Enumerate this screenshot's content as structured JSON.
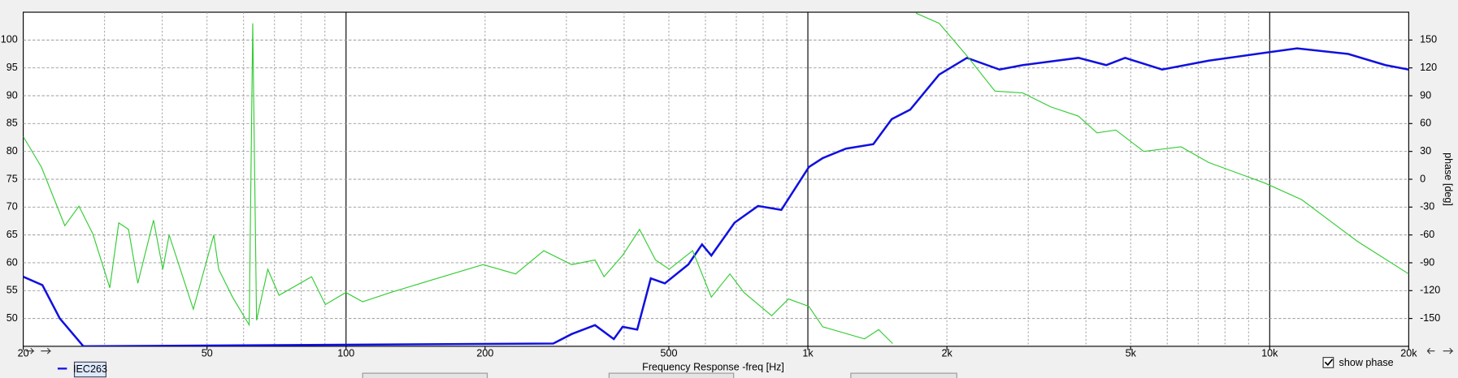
{
  "chart_data": {
    "type": "line",
    "x_label": "Frequency Response -freq [Hz]",
    "y2_label": "phase [deg]",
    "log_x": true,
    "grid": true,
    "xlim": [
      20,
      20000
    ],
    "xticks": [
      20,
      50,
      100,
      200,
      500,
      {
        "value": 1000,
        "label": "1k"
      },
      {
        "value": 2000,
        "label": "2k"
      },
      {
        "value": 5000,
        "label": "5k"
      },
      {
        "value": 10000,
        "label": "10k"
      },
      {
        "value": 20000,
        "label": "20k"
      }
    ],
    "ylim": [
      45,
      105
    ],
    "yticks": [
      50,
      55,
      60,
      65,
      70,
      75,
      80,
      85,
      90,
      95,
      100
    ],
    "y2lim": [
      -180,
      180
    ],
    "y2ticks": [
      -150,
      -120,
      -90,
      -60,
      -30,
      0,
      30,
      60,
      90,
      120,
      150
    ],
    "legend_label": "IEC263",
    "show_phase_label": "show phase",
    "show_phase": true,
    "series": [
      {
        "name": "IEC263",
        "color": "#1010e0",
        "x": [
          20,
          22,
          24,
          27,
          281,
          308,
          346,
          380,
          397,
          427,
          457,
          490,
          551,
          590,
          618,
          694,
          780,
          876,
          1005,
          1077,
          1209,
          1386,
          1519,
          1666,
          1924,
          2210,
          2601,
          2919,
          3853,
          4426,
          4863,
          5850,
          7380,
          9750,
          11460,
          14790,
          17800,
          20000
        ],
        "values": [
          57.5,
          56,
          50,
          45,
          45.5,
          47.2,
          48.8,
          46.3,
          48.5,
          48,
          57.2,
          56.3,
          59.7,
          63.3,
          61.3,
          67.2,
          70.2,
          69.5,
          77.2,
          78.8,
          80.5,
          81.3,
          85.8,
          87.5,
          93.8,
          96.8,
          94.7,
          95.5,
          96.8,
          95.5,
          96.8,
          94.7,
          96.3,
          97.7,
          98.5,
          97.5,
          95.5,
          94.7
        ]
      },
      {
        "name": "phase",
        "color": "#33cc33",
        "axis": "y2",
        "x": [
          20,
          21.9,
          24.6,
          26.4,
          28.3,
          30.8,
          32.2,
          33.8,
          35.4,
          38.3,
          40.1,
          41.4,
          46.7,
          51.7,
          53,
          56.8,
          61.7,
          62.8,
          64,
          67.7,
          71.6,
          84.2,
          90.2,
          99.9,
          108.6,
          124.9,
          150,
          198,
          233,
          268,
          308,
          346,
          362,
          397,
          432,
          468,
          501,
          563,
          618,
          678,
          727,
          835,
          908,
          1005,
          1077,
          1327,
          1423,
          1526,
          1600,
          1714,
          1924,
          2210,
          2541,
          2919,
          3357,
          3853,
          4228,
          4644,
          5336,
          6426,
          7380,
          9750,
          11730,
          15490,
          20000
        ],
        "values": [
          46,
          13,
          -50,
          -29,
          -59,
          -117,
          -47,
          -54,
          -112,
          -44,
          -97,
          -60,
          -140,
          -60,
          -97,
          -127,
          -157,
          168,
          -152,
          -97,
          -125,
          -105,
          -135,
          -122,
          -132,
          -122,
          -110,
          -92,
          -102,
          -77,
          -92,
          -87,
          -105,
          -82,
          -54,
          -87,
          -97,
          -77,
          -127,
          -102,
          -122,
          -147,
          -129,
          -137,
          -159,
          -172,
          -162,
          -177,
          null,
          179,
          168,
          133,
          95,
          93,
          78,
          68,
          50,
          53,
          30,
          35,
          18,
          -4,
          -22,
          -67,
          -102
        ]
      }
    ]
  }
}
